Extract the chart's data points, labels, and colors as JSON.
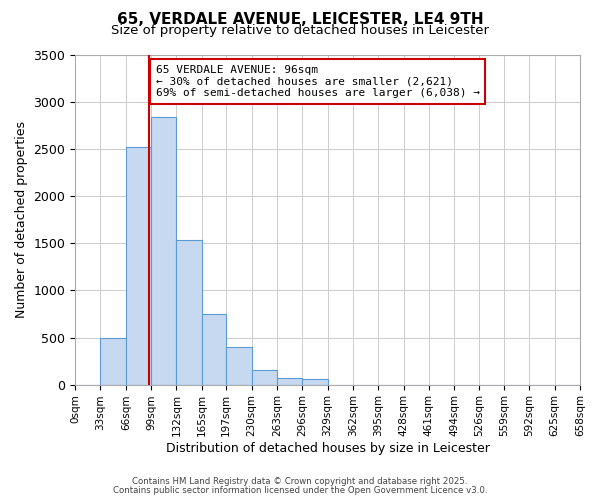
{
  "title": "65, VERDALE AVENUE, LEICESTER, LE4 9TH",
  "subtitle": "Size of property relative to detached houses in Leicester",
  "xlabel": "Distribution of detached houses by size in Leicester",
  "ylabel": "Number of detached properties",
  "bar_values": [
    0,
    500,
    2520,
    2840,
    1540,
    750,
    400,
    155,
    75,
    55,
    0,
    0,
    0,
    0,
    0,
    0,
    0,
    0,
    0,
    0
  ],
  "bin_edges": [
    0,
    33,
    66,
    99,
    132,
    165,
    197,
    230,
    263,
    296,
    329,
    362,
    395,
    428,
    461,
    494,
    526,
    559,
    592,
    625,
    658
  ],
  "bin_labels": [
    "0sqm",
    "33sqm",
    "66sqm",
    "99sqm",
    "132sqm",
    "165sqm",
    "197sqm",
    "230sqm",
    "263sqm",
    "296sqm",
    "329sqm",
    "362sqm",
    "395sqm",
    "428sqm",
    "461sqm",
    "494sqm",
    "526sqm",
    "559sqm",
    "592sqm",
    "625sqm",
    "658sqm"
  ],
  "bar_color": "#c6d9f0",
  "bar_edge_color": "#5b9bd5",
  "property_line_x": 96,
  "property_line_color": "#cc0000",
  "annotation_text_line1": "65 VERDALE AVENUE: 96sqm",
  "annotation_text_line2": "← 30% of detached houses are smaller (2,621)",
  "annotation_text_line3": "69% of semi-detached houses are larger (6,038) →",
  "annotation_box_color": "#cc0000",
  "annotation_bg_color": "#ffffff",
  "ylim": [
    0,
    3500
  ],
  "yticks": [
    0,
    500,
    1000,
    1500,
    2000,
    2500,
    3000,
    3500
  ],
  "footer_line1": "Contains HM Land Registry data © Crown copyright and database right 2025.",
  "footer_line2": "Contains public sector information licensed under the Open Government Licence v3.0.",
  "bg_color": "#ffffff",
  "grid_color": "#cccccc"
}
